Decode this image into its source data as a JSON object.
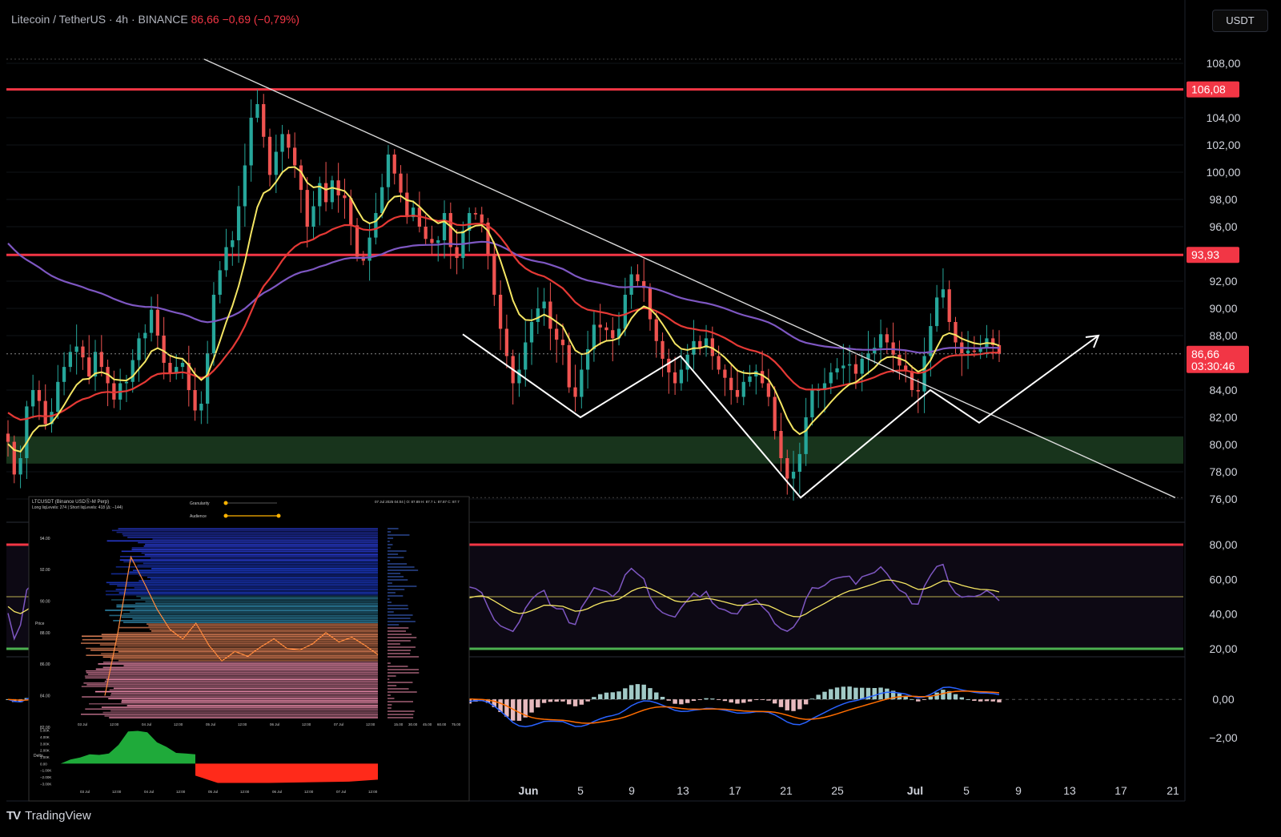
{
  "header": {
    "symbol": "Litecoin / TetherUS",
    "interval": "4h",
    "exchange": "BINANCE",
    "price": "86,66",
    "change": "−0,69 (−0,79%)"
  },
  "currency_button": "USDT",
  "footer": {
    "brand": "TradingView",
    "logo": "TV"
  },
  "colors": {
    "background": "#000000",
    "resistance": "#f23645",
    "ema_fast": "#f5e663",
    "ema_mid": "#e53935",
    "ema_slow": "#7e57c2",
    "support_zone": "#1b3a1f",
    "trendline": "#d9d9d9",
    "pattern": "#ffffff",
    "rsi": "#7e57c2",
    "macd": "#2962ff",
    "signal": "#ff6d00"
  },
  "chart_data": [
    {
      "type": "candlestick",
      "title": "Litecoin / TetherUS · 4h · BINANCE",
      "ylim": [
        75,
        109
      ],
      "y_ticks": [
        "108,00",
        "104,00",
        "102,00",
        "100,00",
        "98,00",
        "96,00",
        "92,00",
        "90,00",
        "88,00",
        "84,00",
        "82,00",
        "80,00",
        "78,00",
        "76,00"
      ],
      "x_ticks": [
        "Jun",
        "5",
        "9",
        "13",
        "17",
        "21",
        "25",
        "Jul",
        "5",
        "9",
        "13",
        "17",
        "21"
      ],
      "price_labels": [
        {
          "value": 106.08,
          "text": "106,08"
        },
        {
          "value": 93.93,
          "text": "93,93"
        },
        {
          "value": 86.66,
          "text": "86,66",
          "sub": "03:30:46"
        }
      ],
      "horizontal_lines": [
        106.08,
        93.93
      ],
      "support_zone": [
        78.6,
        80.6
      ],
      "close": [
        80.2,
        77.8,
        79.0,
        82.8,
        84.0,
        83.2,
        81.5,
        82.4,
        84.6,
        85.7,
        86.8,
        87.2,
        86.4,
        85.0,
        86.8,
        85.7,
        84.5,
        83.3,
        84.5,
        84.6,
        86.2,
        87.8,
        88.2,
        89.9,
        88.0,
        86.0,
        85.2,
        85.7,
        86.0,
        84.0,
        82.5,
        83.0,
        86.7,
        91.0,
        92.8,
        94.5,
        95.0,
        97.5,
        100.5,
        104.0,
        105.0,
        102.6,
        99.8,
        101.5,
        102.8,
        101.8,
        100.5,
        98.7,
        96.0,
        97.5,
        99.2,
        97.8,
        99.4,
        98.3,
        98.1,
        96.1,
        93.8,
        93.5,
        95.2,
        97.0,
        98.9,
        101.3,
        99.9,
        98.5,
        96.7,
        97.4,
        96.0,
        95.1,
        94.8,
        95.0,
        97.0,
        94.5,
        93.7,
        95.7,
        97.0,
        96.9,
        96.3,
        94.0,
        91.0,
        88.5,
        86.5,
        84.5,
        85.5,
        87.5,
        89.0,
        90.0,
        90.5,
        88.5,
        87.7,
        87.3,
        84.2,
        83.5,
        85.5,
        87.0,
        88.8,
        88.6,
        88.4,
        87.8,
        88.5,
        91.0,
        92.5,
        92.0,
        91.5,
        89.2,
        87.6,
        86.3,
        85.3,
        84.5,
        85.5,
        86.6,
        87.6,
        87.1,
        87.8,
        86.5,
        85.5,
        84.9,
        84.0,
        83.5,
        84.6,
        85.0,
        85.4,
        84.5,
        83.5,
        81.0,
        79.0,
        77.5,
        78.0,
        79.3,
        82.0,
        84.0,
        84.0,
        84.5,
        85.3,
        85.6,
        85.8,
        85.9,
        85.2,
        86.3,
        86.7,
        87.1,
        88.1,
        87.5,
        86.6,
        85.8,
        85.4,
        84.0,
        83.9,
        86.5,
        88.7,
        90.8,
        91.4,
        89.0,
        87.5,
        86.7,
        86.9,
        86.8,
        87.1,
        87.8,
        87.3,
        86.66
      ],
      "ema_fast_last": 86.6,
      "ema_mid_last": 86.8,
      "ema_slow_last": 90.9,
      "trendline": [
        {
          "value": 108.3
        },
        {
          "value": 76.1
        }
      ],
      "pattern_points": [
        88.1,
        82.0,
        86.5,
        76.1,
        84.0,
        81.6,
        88.0
      ]
    },
    {
      "type": "line",
      "title": "RSI",
      "ylim": [
        20,
        80
      ],
      "y_ticks": [
        "80,00",
        "60,00",
        "40,00",
        "20,00"
      ],
      "levels": [
        80,
        50,
        20
      ],
      "values": [
        40.5,
        25.7,
        33.7,
        53.9,
        57.6,
        50.5,
        39.4,
        44.7,
        56.6,
        59.6,
        65.2,
        63.9,
        55.4,
        46.9,
        60.4,
        50.9,
        44.2,
        39.1,
        47.3,
        46.6,
        57.5,
        65.2,
        63.8,
        71.5,
        56.0,
        47.5,
        45.2,
        49.7,
        52.8,
        41.1,
        36.4,
        41.5,
        64.1,
        77.8,
        80.4,
        81.7,
        79.3,
        83.7,
        85.8,
        86.8,
        85.4,
        72.0,
        61.1,
        65.7,
        68.3,
        61.6,
        56.4,
        50.8,
        43.6,
        49.3,
        55.5,
        48.0,
        57.7,
        52.8,
        52.0,
        44.9,
        38.9,
        39.3,
        48.6,
        56.0,
        61.8,
        67.6,
        59.3,
        53.1,
        46.7,
        50.8,
        45.9,
        43.4,
        43.3,
        44.8,
        53.7,
        43.8,
        41.6,
        51.3,
        55.6,
        54.7,
        52.3,
        44.1,
        36.8,
        33.2,
        31.6,
        30.0,
        35.4,
        43.4,
        48.5,
        51.8,
        53.7,
        45.1,
        43.1,
        42.9,
        35.0,
        34.0,
        43.8,
        49.2,
        55.2,
        53.9,
        53.0,
        50.1,
        53.4,
        62.6,
        66.3,
        63.1,
        60.3,
        49.7,
        43.9,
        40.8,
        39.3,
        38.3,
        43.7,
        48.1,
        52.2,
        49.8,
        53.1,
        46.5,
        43.3,
        42.4,
        40.5,
        40.1,
        45.2,
        46.8,
        48.5,
        44.3,
        40.8,
        34.5,
        31.5,
        30.1,
        32.5,
        37.7,
        48.7,
        55.2,
        54.8,
        56.6,
        59.6,
        60.8,
        61.5,
        61.8,
        57.2,
        61.5,
        62.7,
        64.0,
        67.2,
        63.3,
        58.0,
        53.8,
        51.9,
        45.9,
        45.7,
        56.1,
        62.4,
        67.4,
        68.6,
        57.3,
        52.1,
        49.7,
        50.3,
        50.1,
        51.1,
        53.6,
        51.3,
        47.7
      ]
    },
    {
      "type": "bar",
      "title": "MACD",
      "ylim": [
        -3.2,
        1.8
      ],
      "y_ticks": [
        "0,00",
        "−2,00"
      ],
      "zero": 0,
      "macd_last": 0.06,
      "signal_last": 0.05
    }
  ],
  "inset": {
    "title": "LTCUSDT (Binance USDⓈ-M Perp)",
    "subtitle": "Long liqLevels: 274 | Short liqLevels: 418 (Δ: −144)",
    "granularity_label": "Granularity",
    "audience_label": "Audience",
    "timestamp": "07 Jul 2025 04:04 | O: 87.89 H: 87.7 L: 87.87 C: 87.7",
    "y_axis_label": "Price",
    "y_ticks": [
      "94.00",
      "92.00",
      "90.00",
      "88.00",
      "86.00",
      "84.00",
      "82.00"
    ],
    "x_ticks": [
      "03 Jul",
      "12:00",
      "04 Jul",
      "12:00",
      "05 Jul",
      "12:00",
      "06 Jul",
      "12:00",
      "07 Jul",
      "12:00"
    ],
    "side_ticks": [
      "15.00",
      "30.00",
      "45.00",
      "60.00",
      "75.00"
    ],
    "delta_axis_label": "Delta",
    "delta_ticks": [
      "5.00K",
      "4.00K",
      "3.00K",
      "2.00K",
      "1.00K",
      "0.00",
      "−1.00K",
      "−2.00K",
      "−3.00K"
    ],
    "delta_x_ticks": [
      "03 Jul",
      "12:00",
      "04 Jul",
      "12:00",
      "05 Jul",
      "12:00",
      "06 Jul",
      "12:00",
      "07 Jul",
      "12:00"
    ]
  }
}
